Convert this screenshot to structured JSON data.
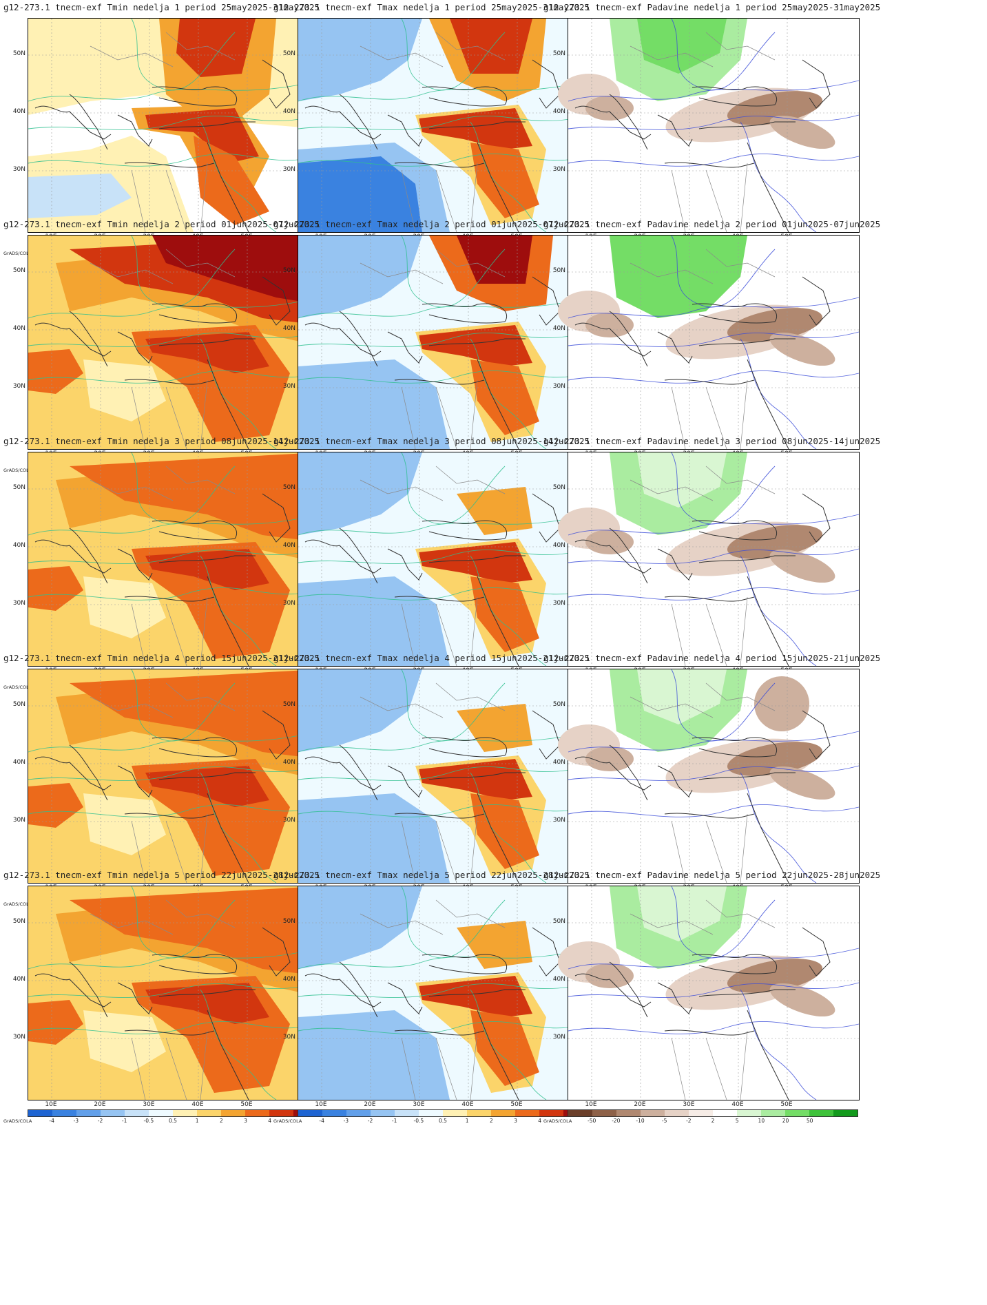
{
  "axes": {
    "lat_labels": [
      "50N",
      "40N",
      "30N"
    ],
    "lon_labels": [
      "10E",
      "20E",
      "30E",
      "40E",
      "50E"
    ],
    "credit": "GrADS/COLA"
  },
  "scales": {
    "temp": {
      "labels": [
        "-4",
        "-3",
        "-2",
        "-1",
        "-0.5",
        "0.5",
        "1",
        "2",
        "3",
        "4"
      ],
      "colors": [
        "#1e64d2",
        "#3a82e0",
        "#62a0ea",
        "#96c4f2",
        "#c8e2f8",
        "#eefaff",
        "#fff1b4",
        "#fbd46a",
        "#f3a431",
        "#ec6a1b",
        "#d2360f",
        "#9e0d0d"
      ]
    },
    "precip": {
      "labels": [
        "-50",
        "-20",
        "-10",
        "-5",
        "-2",
        "2",
        "5",
        "10",
        "20",
        "50"
      ],
      "colors": [
        "#6b3f2a",
        "#8e6148",
        "#b08870",
        "#cdb09e",
        "#e6d2c6",
        "#f6ece6",
        "#ffffff",
        "#d9f6d2",
        "#aaeca0",
        "#74dd66",
        "#3ec23a",
        "#129a1c"
      ]
    }
  },
  "panels": [
    {
      "title": "g12-273.1 tnecm-exf Tmin nedelja 1 period 25may2025-31may2025",
      "var": "tmin",
      "week": 1
    },
    {
      "title": "g12-273.1 tnecm-exf Tmax nedelja 1 period 25may2025-31may2025",
      "var": "tmax",
      "week": 1
    },
    {
      "title": "g12-273.1 tnecm-exf Padavine nedelja 1 period 25may2025-31may2025",
      "var": "precip",
      "week": 1
    },
    {
      "title": "g12-273.1 tnecm-exf Tmin nedelja 2 period 01jun2025-07jun2025",
      "var": "tmin",
      "week": 2
    },
    {
      "title": "g12-273.1 tnecm-exf Tmax nedelja 2 period 01jun2025-07jun2025",
      "var": "tmax",
      "week": 2
    },
    {
      "title": "g12-273.1 tnecm-exf Padavine nedelja 2 period 01jun2025-07jun2025",
      "var": "precip",
      "week": 2
    },
    {
      "title": "g12-273.1 tnecm-exf Tmin nedelja 3 period 08jun2025-14jun2025",
      "var": "tmin",
      "week": 3
    },
    {
      "title": "g12-273.1 tnecm-exf Tmax nedelja 3 period 08jun2025-14jun2025",
      "var": "tmax",
      "week": 3
    },
    {
      "title": "g12-273.1 tnecm-exf Padavine nedelja 3 period 08jun2025-14jun2025",
      "var": "precip",
      "week": 3
    },
    {
      "title": "g12-273.1 tnecm-exf Tmin nedelja 4 period 15jun2025-21jun2025",
      "var": "tmin",
      "week": 4
    },
    {
      "title": "g12-273.1 tnecm-exf Tmax nedelja 4 period 15jun2025-21jun2025",
      "var": "tmax",
      "week": 4
    },
    {
      "title": "g12-273.1 tnecm-exf Padavine nedelja 4 period 15jun2025-21jun2025",
      "var": "precip",
      "week": 4
    },
    {
      "title": "g12-273.1 tnecm-exf Tmin nedelja 5 period 22jun2025-28jun2025",
      "var": "tmin",
      "week": 5
    },
    {
      "title": "g12-273.1 tnecm-exf Tmax nedelja 5 period 22jun2025-28jun2025",
      "var": "tmax",
      "week": 5
    },
    {
      "title": "g12-273.1 tnecm-exf Padavine nedelja 5 period 22jun2025-28jun2025",
      "var": "precip",
      "week": 5
    }
  ]
}
